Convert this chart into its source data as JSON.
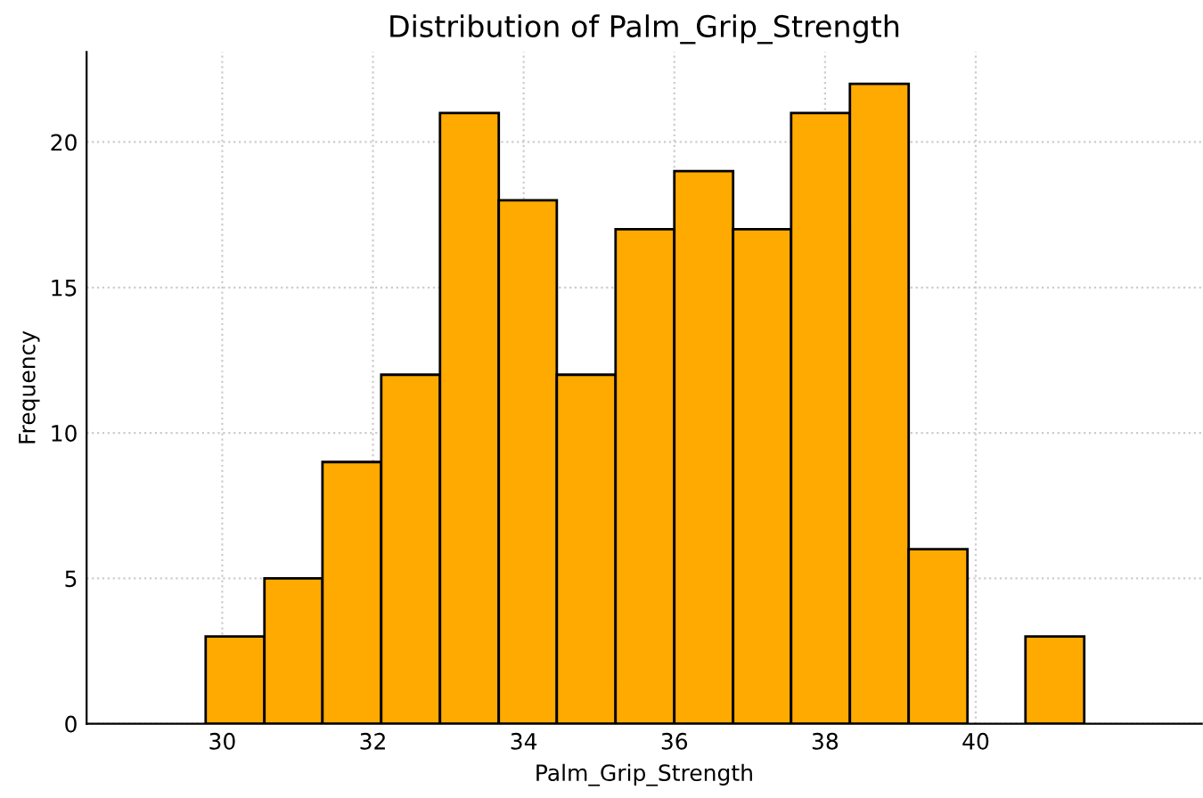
{
  "chart_data": {
    "type": "histogram",
    "title": "Distribution of Palm_Grip_Strength",
    "xlabel": "Palm_Grip_Strength",
    "ylabel": "Frequency",
    "bins": [
      29.78,
      30.56,
      31.33,
      32.11,
      32.89,
      33.67,
      34.44,
      35.22,
      36.0,
      36.78,
      37.55,
      38.33,
      39.11,
      39.89,
      40.66,
      41.44
    ],
    "values": [
      3,
      5,
      9,
      12,
      21,
      18,
      12,
      17,
      19,
      17,
      21,
      22,
      6,
      0,
      3
    ],
    "color": "#ffaa00",
    "xlim": [
      28.2,
      43.0
    ],
    "ylim": [
      0,
      23.1
    ],
    "xticks": [
      30,
      32,
      34,
      36,
      38,
      40
    ],
    "yticks": [
      0,
      5,
      10,
      15,
      20
    ],
    "grid": true
  }
}
